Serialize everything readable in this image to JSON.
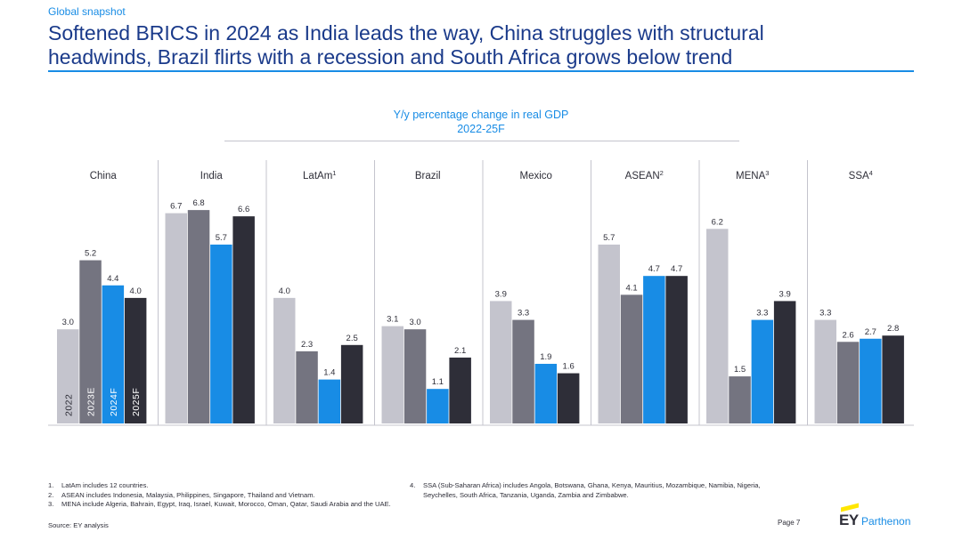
{
  "header": {
    "kicker": "Global snapshot",
    "title_line1": "Softened BRICS in 2024 as India leads the way, China struggles with structural",
    "title_line2": "headwinds, Brazil flirts with a recession and South Africa grows below trend"
  },
  "colors": {
    "accent": "#188ce5",
    "title": "#1a3a8a",
    "y2022": "#c4c4cd",
    "y2023": "#747480",
    "y2024": "#188ce5",
    "y2025": "#2e2e38",
    "logo_yellow": "#ffe600"
  },
  "chart_data": {
    "type": "bar",
    "title": "Y/y percentage change in real GDP",
    "subtitle": "2022-25F",
    "groups": [
      {
        "label": "China",
        "sup": ""
      },
      {
        "label": "India",
        "sup": ""
      },
      {
        "label": "LatAm",
        "sup": "1"
      },
      {
        "label": "Brazil",
        "sup": ""
      },
      {
        "label": "Mexico",
        "sup": ""
      },
      {
        "label": "ASEAN",
        "sup": "2"
      },
      {
        "label": "MENA",
        "sup": "3"
      },
      {
        "label": "SSA",
        "sup": "4"
      }
    ],
    "series": [
      {
        "name": "2022",
        "values": [
          3.0,
          6.7,
          4.0,
          3.1,
          3.9,
          5.7,
          6.2,
          3.3
        ]
      },
      {
        "name": "2023E",
        "values": [
          5.2,
          6.8,
          2.3,
          3.0,
          3.3,
          4.1,
          1.5,
          2.6
        ]
      },
      {
        "name": "2024F",
        "values": [
          4.4,
          5.7,
          1.4,
          1.1,
          1.9,
          4.7,
          3.3,
          2.7
        ]
      },
      {
        "name": "2025F",
        "values": [
          4.0,
          6.6,
          2.5,
          2.1,
          1.6,
          4.7,
          3.9,
          2.8
        ]
      }
    ],
    "value_labels": [
      [
        "3.0",
        "6.7",
        "4.0",
        "3.1",
        "3.9",
        "5.7",
        "6.2",
        "3.3"
      ],
      [
        "5.2",
        "6.8",
        "2.3",
        "3.0",
        "3.3",
        "4.1",
        "1.5",
        "2.6"
      ],
      [
        "4.4",
        "5.7",
        "1.4",
        "1.1",
        "1.9",
        "4.7",
        "3.3",
        "2.7"
      ],
      [
        "4.0",
        "6.6",
        "2.5",
        "2.1",
        "1.6",
        "4.7",
        "3.9",
        "2.8"
      ]
    ],
    "ylim": [
      0,
      7.2
    ],
    "grid": false,
    "legend": "series names inside China bars"
  },
  "footnotes": {
    "left": [
      {
        "num": "1.",
        "text": "LatAm includes 12 countries."
      },
      {
        "num": "2.",
        "text": "ASEAN includes Indonesia, Malaysia, Philippines, Singapore, Thailand and Vietnam."
      },
      {
        "num": "3.",
        "text": "MENA include Algeria, Bahrain, Egypt, Iraq, Israel, Kuwait, Morocco, Oman, Qatar, Saudi Arabia and the UAE."
      }
    ],
    "right": [
      {
        "num": "4.",
        "text": "SSA (Sub-Saharan Africa) includes Angola, Botswana, Ghana, Kenya, Mauritius, Mozambique, Namibia, Nigeria, Seychelles, South Africa, Tanzania, Uganda, Zambia and Zimbabwe."
      }
    ],
    "source": "Source: EY analysis"
  },
  "footer": {
    "page": "Page 7",
    "logo_ey": "EY",
    "logo_word": "Parthenon"
  }
}
